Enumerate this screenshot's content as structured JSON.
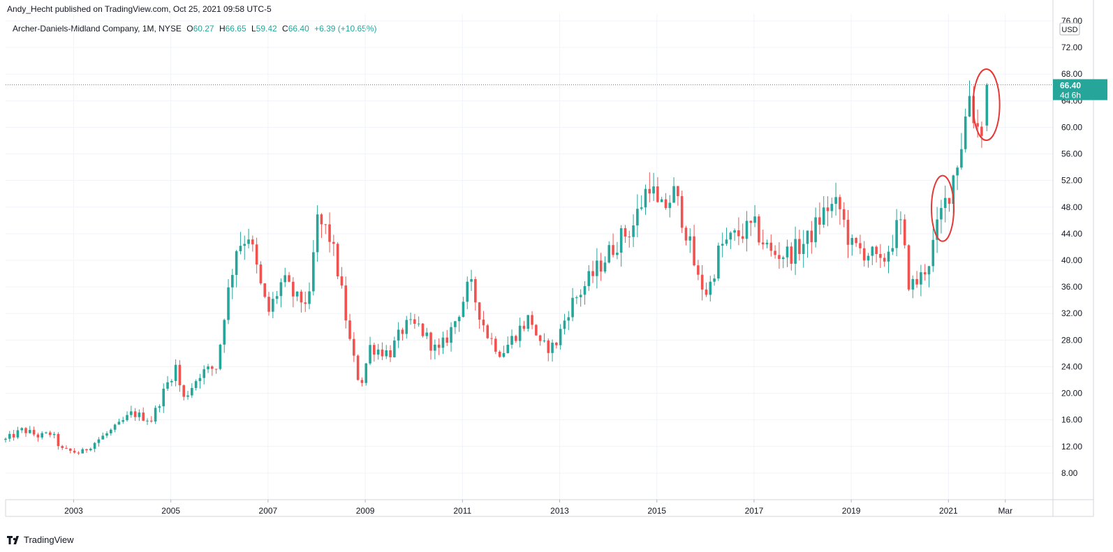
{
  "header": {
    "publisher": "Andy_Hecht published on TradingView.com, Oct 25, 2021 09:58 UTC-5"
  },
  "legend": {
    "symbol": "Archer-Daniels-Midland Company, 1M, NYSE",
    "open_label": "O",
    "open": "60.27",
    "high_label": "H",
    "high": "66.65",
    "low_label": "L",
    "low": "59.42",
    "close_label": "C",
    "close": "66.40",
    "change": "+6.39 (+10.65%)"
  },
  "price_axis": {
    "currency": "USD",
    "ticks": [
      "76.00",
      "72.00",
      "68.00",
      "64.00",
      "60.00",
      "56.00",
      "52.00",
      "48.00",
      "44.00",
      "40.00",
      "36.00",
      "32.00",
      "28.00",
      "24.00",
      "20.00",
      "16.00",
      "12.00",
      "8.00"
    ],
    "last_price_label": "66.40",
    "countdown_label": "4d 6h"
  },
  "time_axis": {
    "labels": [
      "2003",
      "2005",
      "2007",
      "2009",
      "2011",
      "2013",
      "2015",
      "2017",
      "2019",
      "2021",
      "Mar"
    ]
  },
  "brand": {
    "name": "TradingView"
  },
  "colors": {
    "up": "#26a69a",
    "down": "#ef5350",
    "grid": "#f0f3fa",
    "annotation": "#e53935"
  },
  "chart_data": {
    "type": "candlestick",
    "title": "Archer-Daniels-Midland Company, 1M, NYSE",
    "ylim": [
      4,
      76
    ],
    "xlim": [
      2001.6,
      2023.15
    ],
    "grid": true,
    "last_price": 66.4,
    "anchors": [
      {
        "t": 2001.6,
        "v": 13.0
      },
      {
        "t": 2001.95,
        "v": 14.5
      },
      {
        "t": 2002.3,
        "v": 13.5
      },
      {
        "t": 2002.55,
        "v": 14.0
      },
      {
        "t": 2002.75,
        "v": 11.5
      },
      {
        "t": 2003.15,
        "v": 11.0
      },
      {
        "t": 2003.5,
        "v": 13.0
      },
      {
        "t": 2003.9,
        "v": 15.0
      },
      {
        "t": 2004.2,
        "v": 17.0
      },
      {
        "t": 2004.6,
        "v": 16.0
      },
      {
        "t": 2004.9,
        "v": 21.0
      },
      {
        "t": 2005.1,
        "v": 24.0
      },
      {
        "t": 2005.25,
        "v": 19.0
      },
      {
        "t": 2005.6,
        "v": 23.0
      },
      {
        "t": 2005.95,
        "v": 24.0
      },
      {
        "t": 2006.1,
        "v": 32.0
      },
      {
        "t": 2006.35,
        "v": 42.0
      },
      {
        "t": 2006.6,
        "v": 44.0
      },
      {
        "t": 2006.85,
        "v": 36.0
      },
      {
        "t": 2007.0,
        "v": 32.0
      },
      {
        "t": 2007.3,
        "v": 37.0
      },
      {
        "t": 2007.6,
        "v": 34.0
      },
      {
        "t": 2007.85,
        "v": 34.0
      },
      {
        "t": 2008.0,
        "v": 46.0
      },
      {
        "t": 2008.25,
        "v": 44.0
      },
      {
        "t": 2008.45,
        "v": 38.0
      },
      {
        "t": 2008.7,
        "v": 27.0
      },
      {
        "t": 2008.9,
        "v": 21.0
      },
      {
        "t": 2009.1,
        "v": 27.0
      },
      {
        "t": 2009.5,
        "v": 26.0
      },
      {
        "t": 2009.8,
        "v": 30.0
      },
      {
        "t": 2010.1,
        "v": 30.0
      },
      {
        "t": 2010.5,
        "v": 26.0
      },
      {
        "t": 2010.8,
        "v": 30.0
      },
      {
        "t": 2011.15,
        "v": 36.5
      },
      {
        "t": 2011.5,
        "v": 29.0
      },
      {
        "t": 2011.8,
        "v": 26.0
      },
      {
        "t": 2012.1,
        "v": 29.0
      },
      {
        "t": 2012.4,
        "v": 31.5
      },
      {
        "t": 2012.6,
        "v": 27.0
      },
      {
        "t": 2012.9,
        "v": 27.0
      },
      {
        "t": 2013.2,
        "v": 33.0
      },
      {
        "t": 2013.5,
        "v": 36.0
      },
      {
        "t": 2013.9,
        "v": 40.0
      },
      {
        "t": 2014.2,
        "v": 43.0
      },
      {
        "t": 2014.5,
        "v": 45.0
      },
      {
        "t": 2014.85,
        "v": 52.0
      },
      {
        "t": 2015.05,
        "v": 47.0
      },
      {
        "t": 2015.35,
        "v": 50.0
      },
      {
        "t": 2015.55,
        "v": 46.0
      },
      {
        "t": 2015.85,
        "v": 37.0
      },
      {
        "t": 2016.05,
        "v": 35.0
      },
      {
        "t": 2016.3,
        "v": 42.0
      },
      {
        "t": 2016.7,
        "v": 44.0
      },
      {
        "t": 2017.0,
        "v": 45.0
      },
      {
        "t": 2017.35,
        "v": 41.0
      },
      {
        "t": 2017.75,
        "v": 41.0
      },
      {
        "t": 2018.1,
        "v": 43.0
      },
      {
        "t": 2018.5,
        "v": 48.0
      },
      {
        "t": 2018.75,
        "v": 48.0
      },
      {
        "t": 2019.0,
        "v": 42.0
      },
      {
        "t": 2019.4,
        "v": 41.0
      },
      {
        "t": 2019.6,
        "v": 39.0
      },
      {
        "t": 2019.9,
        "v": 44.0
      },
      {
        "t": 2020.0,
        "v": 46.0
      },
      {
        "t": 2020.2,
        "v": 36.0
      },
      {
        "t": 2020.4,
        "v": 37.0
      },
      {
        "t": 2020.6,
        "v": 40.0
      },
      {
        "t": 2020.85,
        "v": 47.0
      },
      {
        "t": 2021.0,
        "v": 50.0
      },
      {
        "t": 2021.25,
        "v": 57.0
      },
      {
        "t": 2021.45,
        "v": 66.0
      },
      {
        "t": 2021.55,
        "v": 60.0
      },
      {
        "t": 2021.7,
        "v": 60.3
      },
      {
        "t": 2021.8,
        "v": 66.4
      }
    ],
    "last_candle": {
      "open": 60.27,
      "high": 66.65,
      "low": 59.42,
      "close": 66.4
    }
  }
}
